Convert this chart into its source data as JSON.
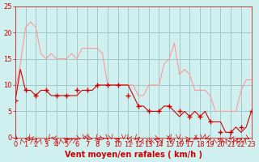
{
  "title": "",
  "xlabel": "Vent moyen/en rafales ( km/h )",
  "ylabel": "",
  "bg_color": "#d0f0f0",
  "grid_color": "#a0c8c8",
  "line1_color": "#ff9999",
  "line2_color": "#cc0000",
  "marker_color": "#cc0000",
  "axis_label_color": "#cc0000",
  "tick_color": "#cc0000",
  "ylim": [
    0,
    25
  ],
  "xlim": [
    0,
    23
  ],
  "yticks": [
    0,
    5,
    10,
    15,
    20,
    25
  ],
  "xticks": [
    0,
    1,
    2,
    3,
    4,
    5,
    6,
    7,
    8,
    9,
    10,
    11,
    12,
    13,
    14,
    15,
    16,
    17,
    18,
    19,
    20,
    21,
    22,
    23
  ],
  "x": [
    0,
    0.5,
    1,
    1.5,
    2,
    2.5,
    3,
    3.5,
    4,
    4.5,
    5,
    5.5,
    6,
    6.5,
    7,
    7.5,
    8,
    8.5,
    9,
    9.5,
    10,
    10.5,
    11,
    11.5,
    12,
    12.5,
    13,
    13.5,
    14,
    14.5,
    15,
    15.5,
    16,
    16.5,
    17,
    17.5,
    18,
    18.5,
    19,
    19.5,
    20,
    20.5,
    21,
    21.5,
    22,
    22.5,
    23
  ],
  "rafales": [
    9,
    14,
    21,
    22,
    21,
    16,
    15,
    16,
    15,
    15,
    15,
    16,
    15,
    17,
    17,
    17,
    17,
    16,
    10,
    10,
    10,
    10,
    10,
    10,
    8,
    8,
    10,
    10,
    10,
    14,
    15,
    18,
    12,
    13,
    12,
    9,
    9,
    9,
    8,
    5,
    5,
    5,
    5,
    5,
    9,
    11,
    11
  ],
  "moyen": [
    7,
    13,
    9,
    9,
    8,
    9,
    9,
    8,
    8,
    8,
    8,
    8,
    8,
    9,
    9,
    9,
    10,
    10,
    10,
    10,
    10,
    10,
    10,
    8,
    6,
    6,
    5,
    5,
    5,
    6,
    6,
    5,
    4,
    5,
    4,
    5,
    4,
    5,
    3,
    3,
    3,
    1,
    1,
    2,
    1,
    2,
    5
  ],
  "x_hourly": [
    0,
    1,
    2,
    3,
    4,
    5,
    6,
    7,
    8,
    9,
    10,
    11,
    12,
    13,
    14,
    15,
    16,
    17,
    18,
    19,
    20,
    21,
    22,
    23
  ],
  "moyen_hourly": [
    7,
    9,
    8,
    9,
    8,
    8,
    9,
    9,
    10,
    10,
    10,
    8,
    6,
    5,
    5,
    6,
    5,
    4,
    4,
    3,
    1,
    1,
    2,
    5
  ]
}
